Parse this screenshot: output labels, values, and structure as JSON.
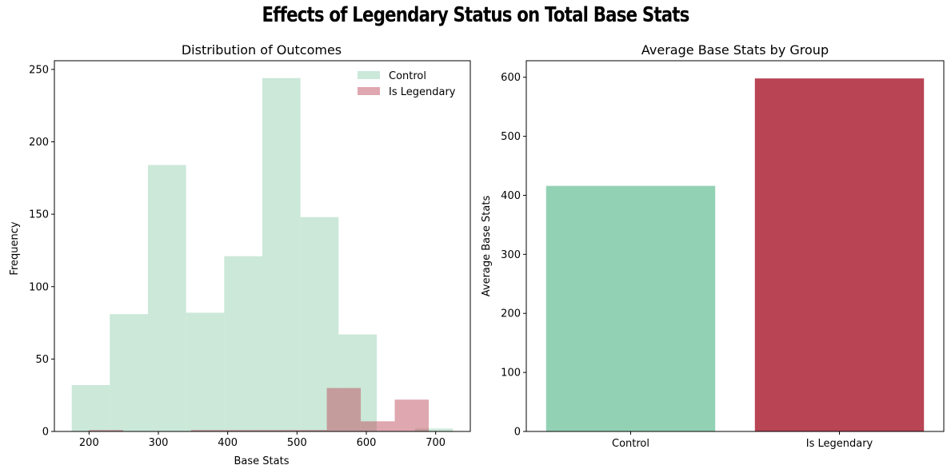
{
  "figure": {
    "suptitle": "Effects of Legendary Status on Total Base Stats"
  },
  "colors": {
    "control_hist": "#a8d8c0",
    "legendary_hist": "#c0505f",
    "control_bar": "#93d1b4",
    "legendary_bar": "#b84454"
  },
  "chart_data": [
    {
      "type": "histogram",
      "title": "Distribution of Outcomes",
      "xlabel": "Base Stats",
      "ylabel": "Frequency",
      "xlim": [
        150,
        750
      ],
      "ylim": [
        0,
        256
      ],
      "xticks": [
        200,
        300,
        400,
        500,
        600,
        700
      ],
      "yticks": [
        0,
        50,
        100,
        150,
        200,
        250
      ],
      "legend": {
        "placement": "top-right",
        "entries": [
          "Control",
          "Is Legendary"
        ]
      },
      "series": [
        {
          "name": "Control",
          "alpha": 0.6,
          "bins": [
            {
              "x0": 175,
              "x1": 230,
              "count": 32
            },
            {
              "x0": 230,
              "x1": 285,
              "count": 81
            },
            {
              "x0": 285,
              "x1": 340,
              "count": 184
            },
            {
              "x0": 340,
              "x1": 395,
              "count": 82
            },
            {
              "x0": 395,
              "x1": 450,
              "count": 121
            },
            {
              "x0": 450,
              "x1": 505,
              "count": 244
            },
            {
              "x0": 505,
              "x1": 560,
              "count": 148
            },
            {
              "x0": 560,
              "x1": 615,
              "count": 67
            },
            {
              "x0": 615,
              "x1": 670,
              "count": 0
            },
            {
              "x0": 670,
              "x1": 725,
              "count": 2
            }
          ]
        },
        {
          "name": "Is Legendary",
          "alpha": 0.5,
          "bins": [
            {
              "x0": 200,
              "x1": 249,
              "count": 1
            },
            {
              "x0": 249,
              "x1": 298,
              "count": 0
            },
            {
              "x0": 298,
              "x1": 347,
              "count": 0
            },
            {
              "x0": 347,
              "x1": 396,
              "count": 1
            },
            {
              "x0": 396,
              "x1": 445,
              "count": 1
            },
            {
              "x0": 445,
              "x1": 494,
              "count": 1
            },
            {
              "x0": 494,
              "x1": 543,
              "count": 1
            },
            {
              "x0": 543,
              "x1": 592,
              "count": 30
            },
            {
              "x0": 592,
              "x1": 641,
              "count": 7
            },
            {
              "x0": 641,
              "x1": 690,
              "count": 22
            }
          ]
        }
      ]
    },
    {
      "type": "bar",
      "title": "Average Base Stats by Group",
      "xlabel": "",
      "ylabel": "Average Base Stats",
      "categories": [
        "Control",
        "Is Legendary"
      ],
      "values": [
        416,
        598
      ],
      "ylim": [
        0,
        628
      ],
      "yticks": [
        0,
        100,
        200,
        300,
        400,
        500,
        600
      ]
    }
  ]
}
